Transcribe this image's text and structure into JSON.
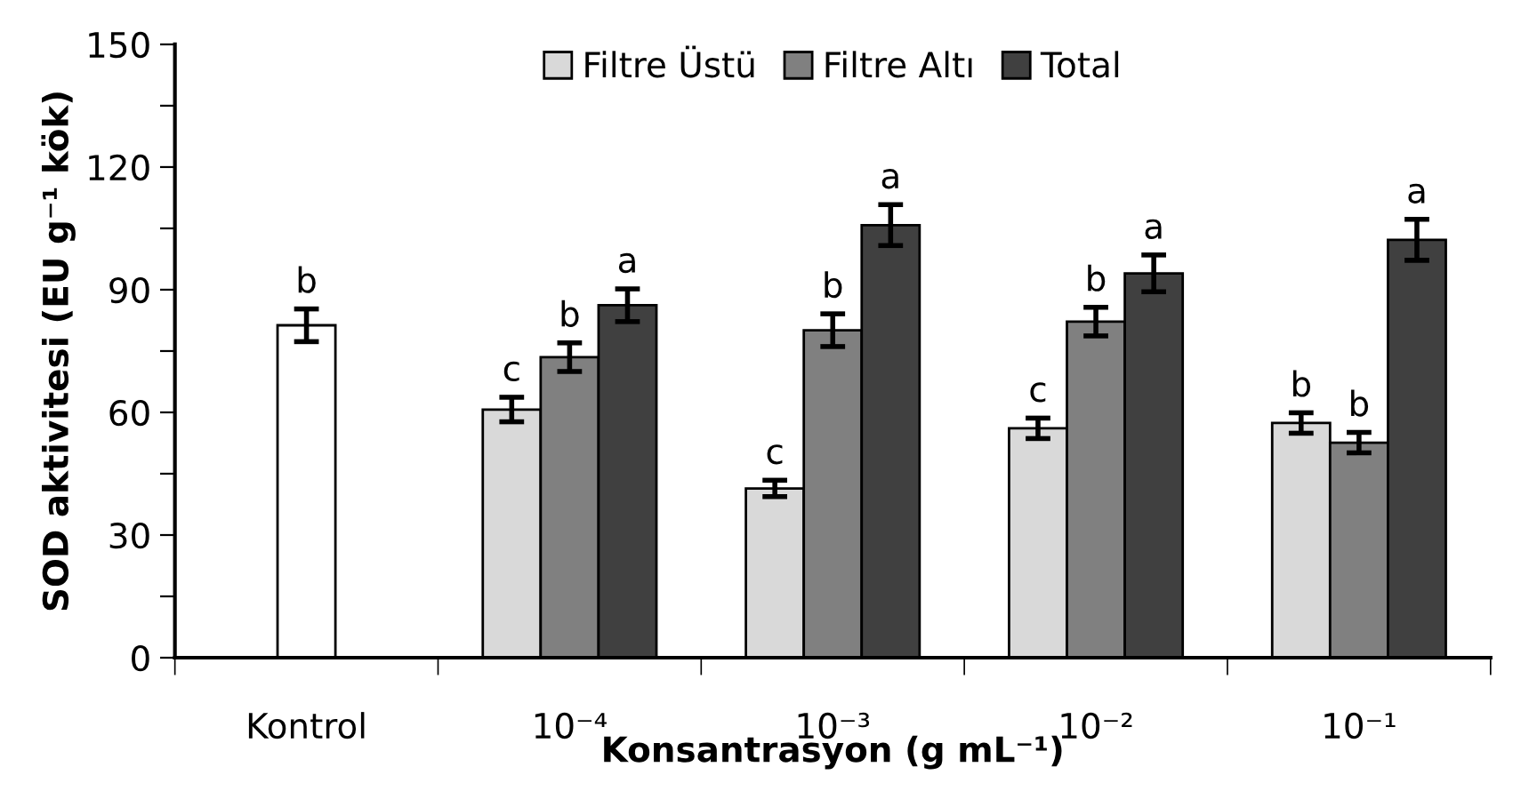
{
  "chart_data": {
    "type": "bar",
    "categories": [
      "Kontrol",
      "10⁻⁴",
      "10⁻³",
      "10⁻²",
      "10⁻¹"
    ],
    "xlabel": "Konsantrasyon (g mL⁻¹)",
    "ylabel": "SOD aktivitesi (EU g⁻¹ kök)",
    "ylim": [
      0,
      150
    ],
    "yticks": [
      0,
      {
        "value": 15,
        "label": null
      },
      30,
      {
        "value": 45,
        "label": null
      },
      60,
      {
        "value": 75,
        "label": null
      },
      90,
      {
        "value": 105,
        "label": null
      },
      120,
      {
        "value": 135,
        "label": null
      },
      150
    ],
    "grid": false,
    "legend": "top",
    "series": [
      {
        "color": "#ffffff",
        "values": [
          81.3,
          null,
          null,
          null,
          null
        ],
        "errors": [
          4,
          null,
          null,
          null,
          null
        ],
        "value_labels": [
          "b",
          null,
          null,
          null,
          null
        ]
      },
      {
        "name": "Filtre Üstü",
        "color": "#d9d9d9",
        "values": [
          null,
          60.7,
          41.4,
          56.1,
          57.4
        ],
        "errors": [
          null,
          3,
          2,
          2.5,
          2.5
        ],
        "value_labels": [
          null,
          "c",
          "c",
          "c",
          "b"
        ]
      },
      {
        "name": "Filtre Altı",
        "color": "#808080",
        "values": [
          null,
          73.5,
          80.1,
          82.2,
          52.6
        ],
        "errors": [
          null,
          3.5,
          4,
          3.5,
          2.5
        ],
        "value_labels": [
          null,
          "b",
          "b",
          "b",
          "b"
        ]
      },
      {
        "name": "Total",
        "color": "#404040",
        "values": [
          null,
          86.2,
          105.8,
          94.0,
          102.2
        ],
        "errors": [
          null,
          4,
          5,
          4.5,
          5
        ],
        "value_labels": [
          null,
          "a",
          "a",
          "a",
          "a"
        ]
      }
    ]
  }
}
